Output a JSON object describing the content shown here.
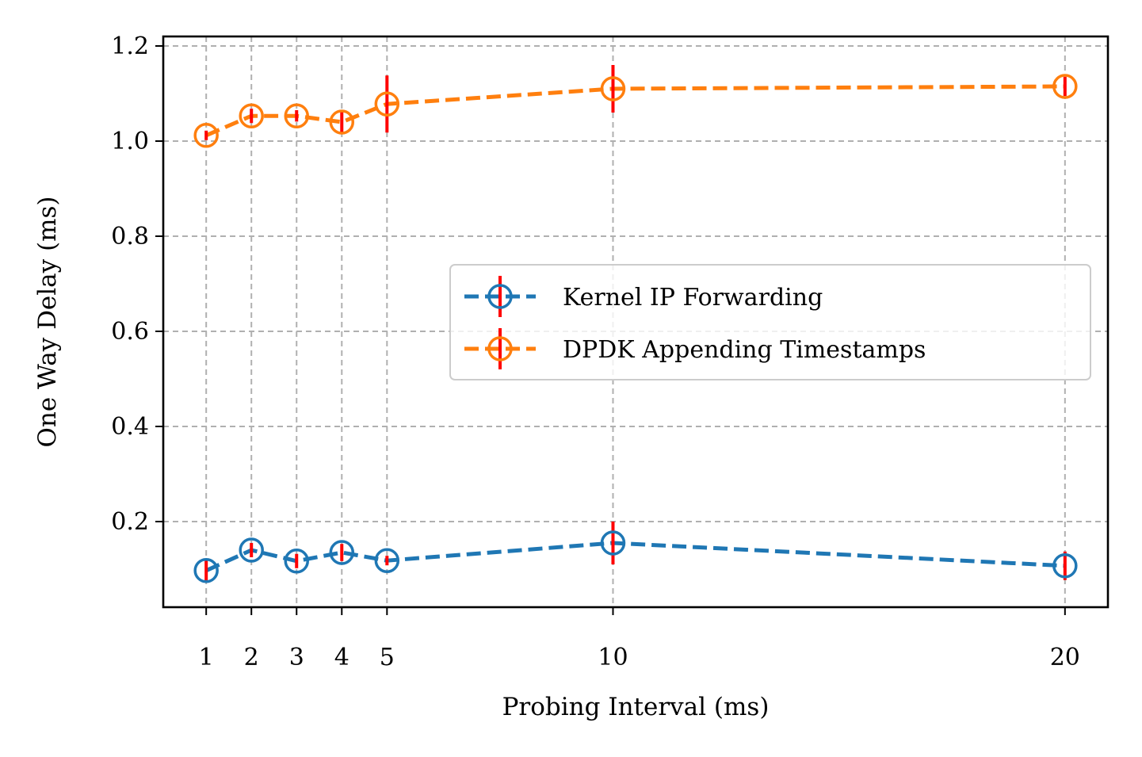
{
  "chart_data": {
    "type": "line",
    "x": [
      1,
      2,
      3,
      4,
      5,
      10,
      20
    ],
    "xlabel": "Probing Interval (ms)",
    "ylabel": "One Way Delay (ms)",
    "xlim": [
      0.05,
      20.95
    ],
    "ylim": [
      0.02,
      1.22
    ],
    "xticks": [
      1,
      2,
      3,
      4,
      5,
      10,
      20
    ],
    "xtick_labels": [
      "1",
      "2",
      "3",
      "4",
      "5",
      "10",
      "20"
    ],
    "yticks": [
      0.2,
      0.4,
      0.6,
      0.8,
      1.0,
      1.2
    ],
    "ytick_labels": [
      "0.2",
      "0.4",
      "0.6",
      "0.8",
      "1.0",
      "1.2"
    ],
    "grid": true,
    "legend_position": "center-right",
    "error_bar_color": "#ff0000",
    "series": [
      {
        "name": "Kernel IP Forwarding",
        "color": "#1f77b4",
        "values": [
          0.097,
          0.14,
          0.117,
          0.135,
          0.118,
          0.155,
          0.107
        ],
        "errors": [
          0.022,
          0.015,
          0.015,
          0.018,
          0.01,
          0.045,
          0.03
        ]
      },
      {
        "name": "DPDK Appending Timestamps",
        "color": "#ff7f0e",
        "values": [
          1.012,
          1.053,
          1.053,
          1.04,
          1.078,
          1.11,
          1.115
        ],
        "errors": [
          0.01,
          0.015,
          0.012,
          0.025,
          0.06,
          0.05,
          0.02
        ]
      }
    ]
  }
}
